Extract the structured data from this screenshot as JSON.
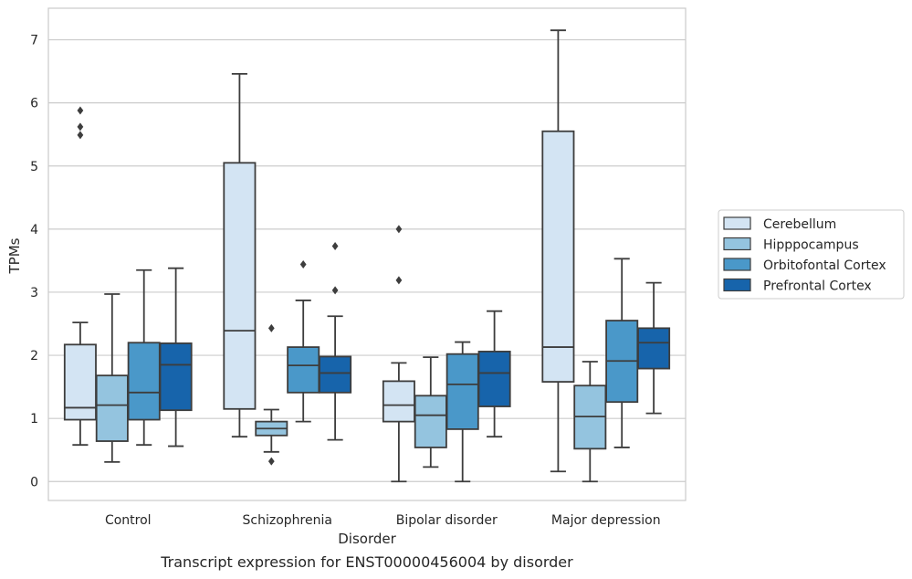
{
  "caption": "Transcript expression for ENST00000456004 by disorder",
  "chart_data": {
    "type": "boxplot",
    "title": "",
    "xlabel": "Disorder",
    "ylabel": "TPMs",
    "categories": [
      "Control",
      "Schizophrenia",
      "Bipolar disorder",
      "Major depression"
    ],
    "ylim": [
      -0.3,
      7.5
    ],
    "yticks": [
      0,
      1,
      2,
      3,
      4,
      5,
      6,
      7
    ],
    "grid": "horizontal",
    "legend_position": "right",
    "series": [
      {
        "name": "Cerebellum",
        "color": "#d3e4f3",
        "boxes": [
          {
            "whislo": 0.58,
            "q1": 0.98,
            "med": 1.17,
            "q3": 2.17,
            "whishi": 2.52,
            "fliers": [
              5.88,
              5.62,
              5.49
            ]
          },
          {
            "whislo": 0.71,
            "q1": 1.15,
            "med": 2.39,
            "q3": 5.05,
            "whishi": 6.46,
            "fliers": []
          },
          {
            "whislo": 0.0,
            "q1": 0.95,
            "med": 1.21,
            "q3": 1.59,
            "whishi": 1.88,
            "fliers": [
              4.0,
              3.19
            ]
          },
          {
            "whislo": 0.16,
            "q1": 1.58,
            "med": 2.13,
            "q3": 5.55,
            "whishi": 7.15,
            "fliers": []
          }
        ]
      },
      {
        "name": "Hipppocampus",
        "color": "#94c4df",
        "boxes": [
          {
            "whislo": 0.31,
            "q1": 0.64,
            "med": 1.21,
            "q3": 1.68,
            "whishi": 2.97,
            "fliers": []
          },
          {
            "whislo": 0.47,
            "q1": 0.73,
            "med": 0.84,
            "q3": 0.95,
            "whishi": 1.14,
            "fliers": [
              2.43,
              0.32
            ]
          },
          {
            "whislo": 0.23,
            "q1": 0.54,
            "med": 1.05,
            "q3": 1.36,
            "whishi": 1.97,
            "fliers": []
          },
          {
            "whislo": 0.0,
            "q1": 0.52,
            "med": 1.03,
            "q3": 1.52,
            "whishi": 1.9,
            "fliers": []
          }
        ]
      },
      {
        "name": "Orbitofontal Cortex",
        "color": "#4a98c9",
        "boxes": [
          {
            "whislo": 0.58,
            "q1": 0.98,
            "med": 1.41,
            "q3": 2.2,
            "whishi": 3.35,
            "fliers": []
          },
          {
            "whislo": 0.95,
            "q1": 1.41,
            "med": 1.84,
            "q3": 2.13,
            "whishi": 2.87,
            "fliers": [
              3.44
            ]
          },
          {
            "whislo": 0.0,
            "q1": 0.83,
            "med": 1.54,
            "q3": 2.02,
            "whishi": 2.21,
            "fliers": []
          },
          {
            "whislo": 0.54,
            "q1": 1.26,
            "med": 1.91,
            "q3": 2.55,
            "whishi": 3.53,
            "fliers": []
          }
        ]
      },
      {
        "name": "Prefrontal Cortex",
        "color": "#1764ab",
        "boxes": [
          {
            "whislo": 0.56,
            "q1": 1.13,
            "med": 1.85,
            "q3": 2.19,
            "whishi": 3.38,
            "fliers": []
          },
          {
            "whislo": 0.66,
            "q1": 1.41,
            "med": 1.72,
            "q3": 1.98,
            "whishi": 2.62,
            "fliers": [
              3.73,
              3.03
            ]
          },
          {
            "whislo": 0.71,
            "q1": 1.19,
            "med": 1.72,
            "q3": 2.06,
            "whishi": 2.7,
            "fliers": []
          },
          {
            "whislo": 1.08,
            "q1": 1.79,
            "med": 2.2,
            "q3": 2.43,
            "whishi": 3.15,
            "fliers": []
          }
        ]
      }
    ]
  }
}
